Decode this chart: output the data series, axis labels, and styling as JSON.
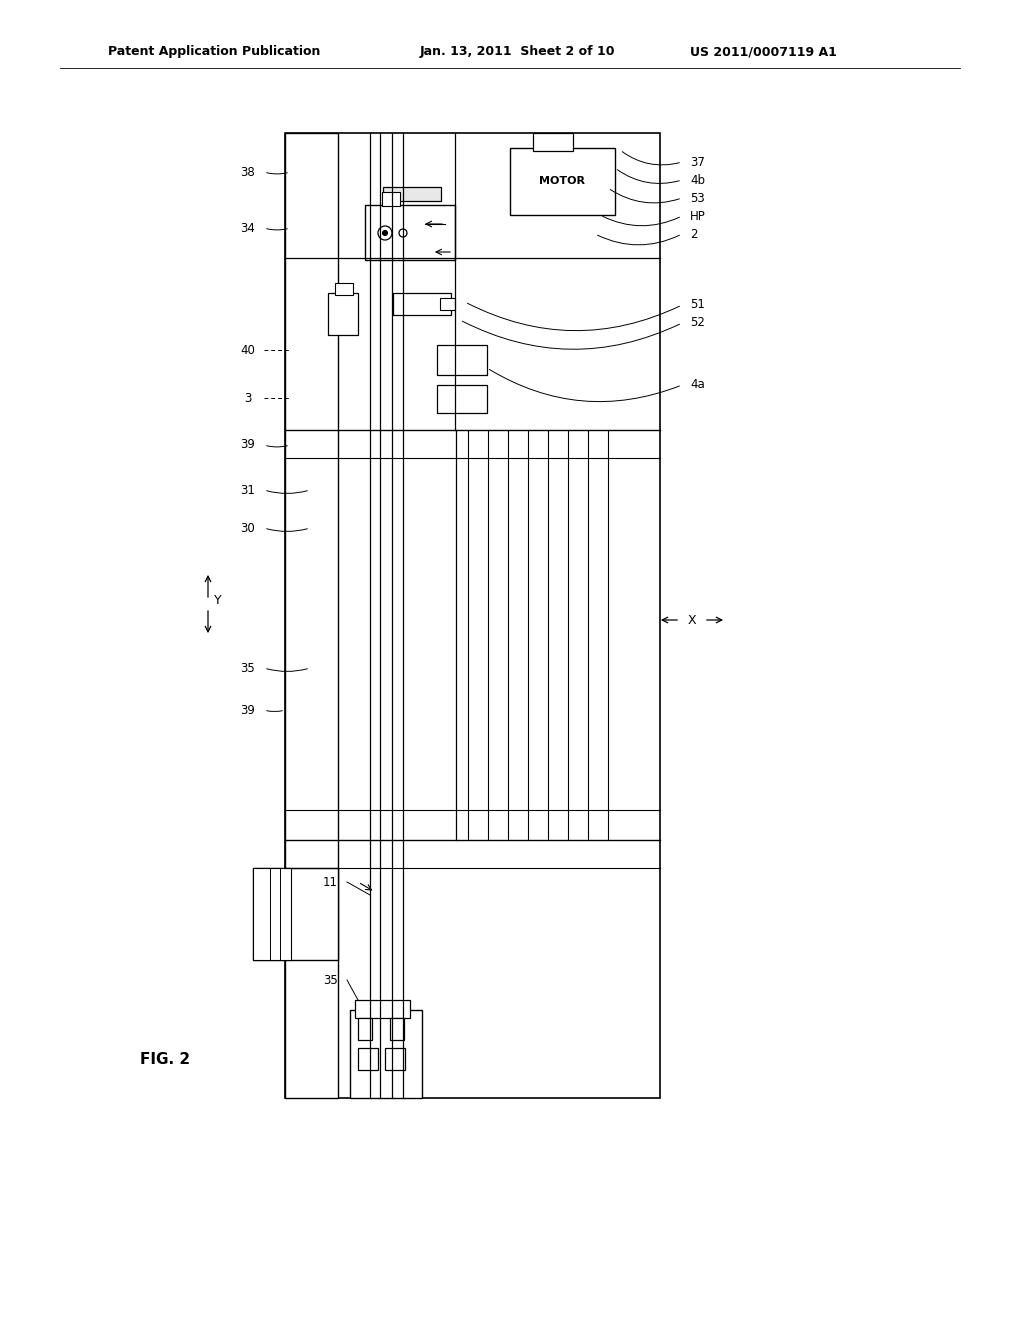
{
  "bg_color": "#ffffff",
  "line_color": "#000000",
  "header_left": "Patent Application Publication",
  "header_mid": "Jan. 13, 2011  Sheet 2 of 10",
  "header_right": "US 2011/0007119 A1",
  "fig_label": "FIG. 2"
}
